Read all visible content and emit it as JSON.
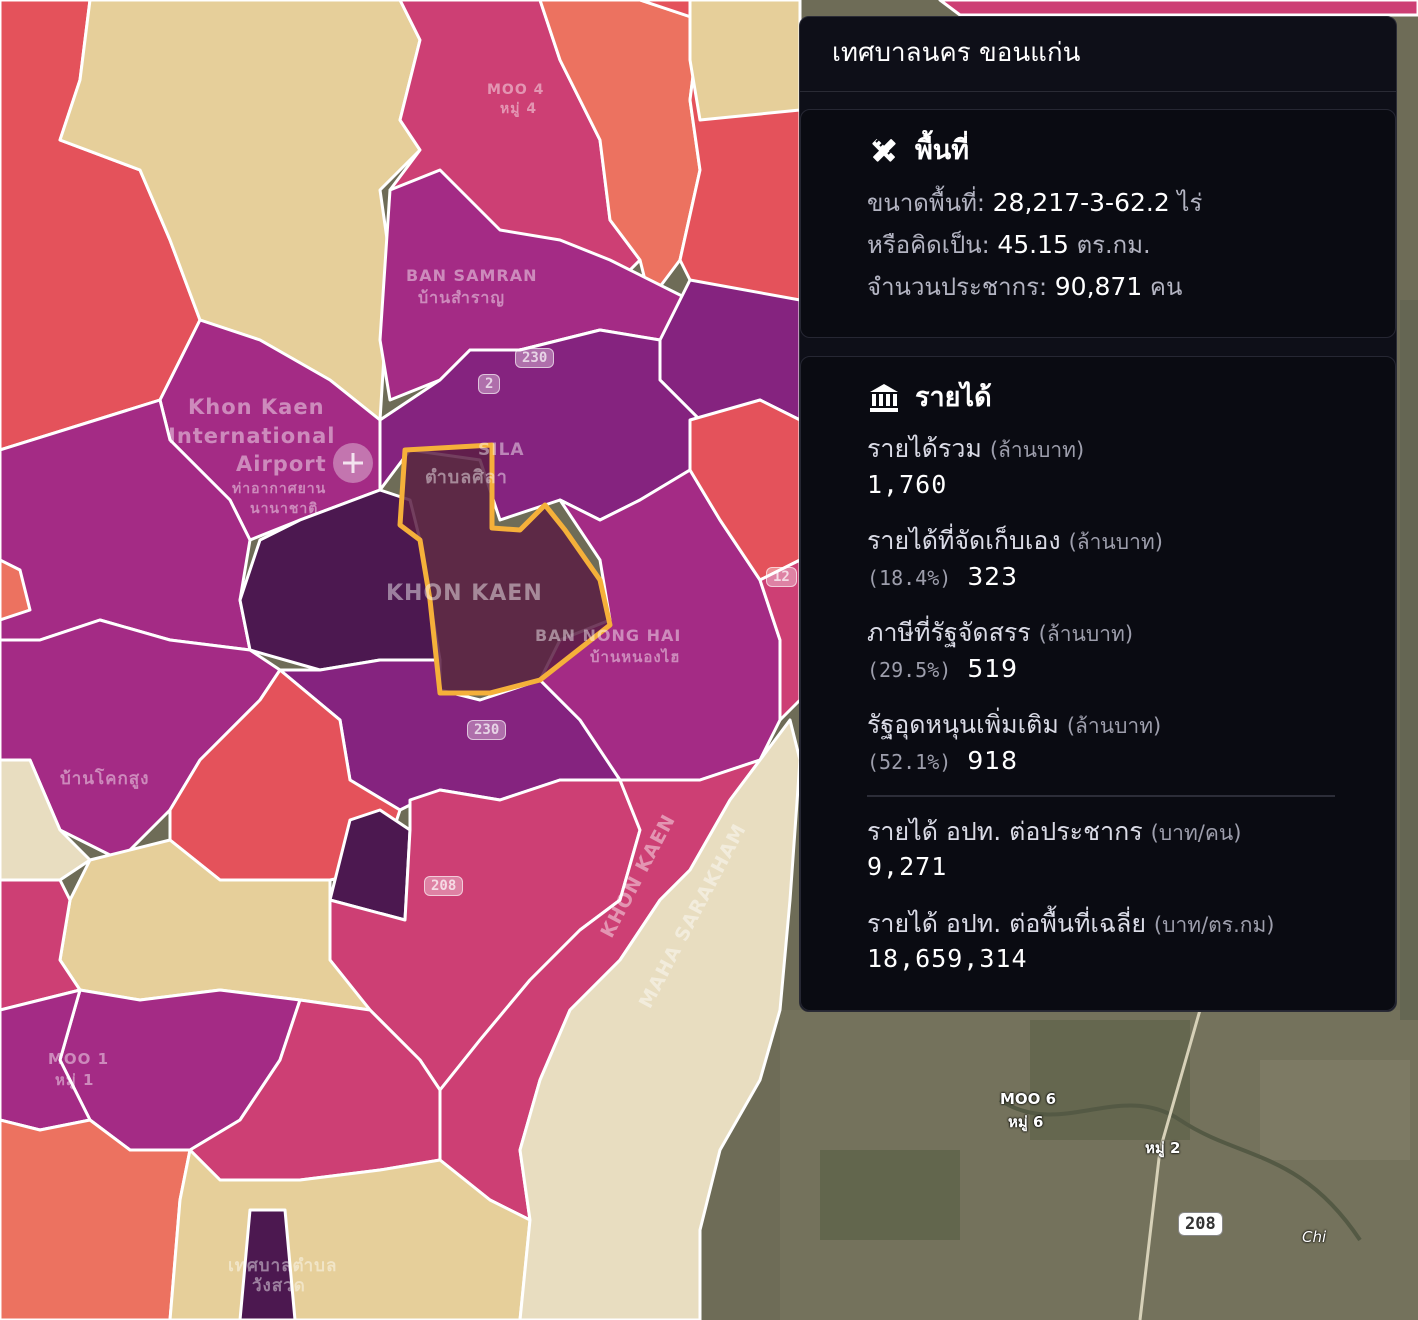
{
  "map": {
    "place_labels": {
      "moo4": "MOO 4",
      "moo4_th": "หมู่ 4",
      "ban_samran": "BAN SAMRAN",
      "ban_samran_th": "บ้านสำราญ",
      "airport_en1": "Khon Kaen",
      "airport_en2": "International",
      "airport_en3": "Airport",
      "airport_th1": "ท่าอากาศยาน",
      "airport_th2": "นานาชาติ",
      "sila": "SILA",
      "sila_th": "ตำบลศิลา",
      "khon_kaen": "KHON KAEN",
      "ban_nong_hai": "BAN NONG HAI",
      "ban_nong_hai_th": "บ้านหนองไฮ",
      "ban_khok_sung": "บ้านโคกสูง",
      "moo1": "MOO 1",
      "moo1_th": "หมู่ 1",
      "province_khon_kaen": "KHON KAEN",
      "province_maha": "MAHA SARAKHAM",
      "sat_moo6": "MOO 6",
      "sat_moo6_th": "หมู่ 6",
      "sat_moo2": "หมู่ 2",
      "sat_chi": "Chi",
      "bottom_th": "เทศบาลตำบล",
      "bottom_th2": "วังสวด"
    },
    "road_shields": {
      "r230a": "230",
      "r230b": "230",
      "r2": "2",
      "r12": "12",
      "r208a": "208",
      "r208b": "208"
    },
    "colors": {
      "beige": "#e6cf9a",
      "cream": "#e8ddc0",
      "red": "#e4525b",
      "salmon": "#ec7260",
      "pink": "#cd3f74",
      "magenta": "#a42b85",
      "purple": "#85237f",
      "dark": "#4c1850",
      "highlight": "#f5b03a"
    }
  },
  "panel": {
    "title": "เทศบาลนคร ขอนแก่น",
    "area": {
      "heading": "พื้นที่",
      "icon": "ruler-pencil-icon",
      "size_label": "ขนาดพื้นที่:",
      "size_value": "28,217-3-62.2",
      "size_unit": "ไร่",
      "sqkm_label": "หรือคิดเป็น:",
      "sqkm_value": "45.15",
      "sqkm_unit": "ตร.กม.",
      "pop_label": "จำนวนประชากร:",
      "pop_value": "90,871",
      "pop_unit": "คน"
    },
    "income": {
      "heading": "รายได้",
      "icon": "bank-icon",
      "total_label": "รายได้รวม",
      "total_unit": "(ล้านบาท)",
      "total_value": "1,760",
      "self_label": "รายได้ที่จัดเก็บเอง",
      "self_unit": "(ล้านบาท)",
      "self_pct": "(18.4%)",
      "self_value": "323",
      "tax_label": "ภาษีที่รัฐจัดสรร",
      "tax_unit": "(ล้านบาท)",
      "tax_pct": "(29.5%)",
      "tax_value": "519",
      "subsidy_label": "รัฐอุดหนุนเพิ่มเติม",
      "subsidy_unit": "(ล้านบาท)",
      "subsidy_pct": "(52.1%)",
      "subsidy_value": "918",
      "per_capita_label": "รายได้ อปท. ต่อประชากร",
      "per_capita_unit": "(บาท/คน)",
      "per_capita_value": "9,271",
      "per_area_label": "รายได้ อปท. ต่อพื้นที่เฉลี่ย",
      "per_area_unit": "(บาท/ตร.กม)",
      "per_area_value": "18,659,314"
    }
  }
}
